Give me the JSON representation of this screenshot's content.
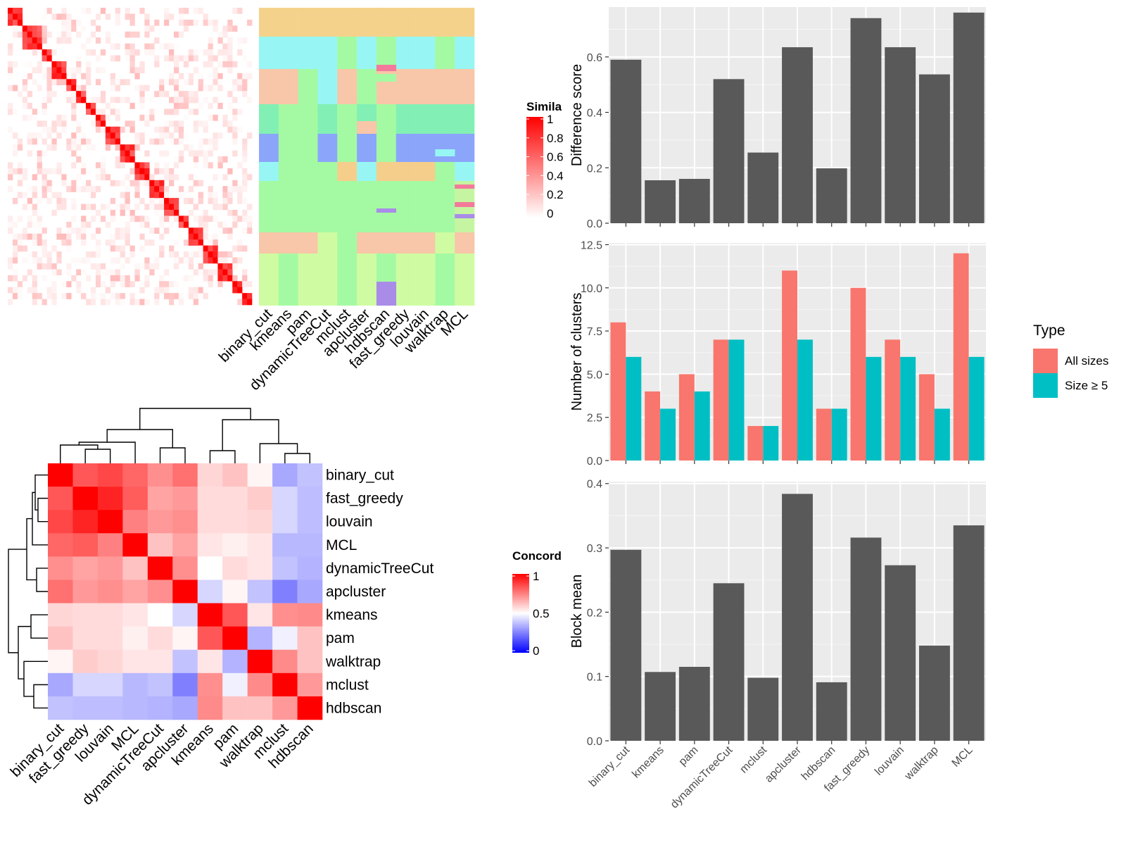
{
  "colors": {
    "panel_bg": "#EBEBEB",
    "bar_dark": "#595959",
    "all_sizes": "#F8766D",
    "size_ge5": "#00BFC4",
    "heat_red": "#FF0000",
    "heat_blue": "#0000FF",
    "white": "#FFFFFF"
  },
  "methods_bar": [
    "binary_cut",
    "kmeans",
    "pam",
    "dynamicTreeCut",
    "mclust",
    "apcluster",
    "hdbscan",
    "fast_greedy",
    "louvain",
    "walktrap",
    "MCL"
  ],
  "similarity_heatmap": {
    "legend_title": "Simila",
    "legend_ticks": [
      "1",
      "0.8",
      "0.6",
      "0.4",
      "0.2",
      "0"
    ],
    "column_labels": [
      "binary_cut",
      "kmeans",
      "pam",
      "dynamicTreeCut",
      "mclust",
      "apcluster",
      "hdbscan",
      "fast_greedy",
      "louvain",
      "walktrap",
      "MCL"
    ],
    "n_terms": 50
  },
  "cluster_palette": [
    "#F5D28C",
    "#97F6F3",
    "#A4FAA2",
    "#F8C6A8",
    "#82F0B4",
    "#8BA5FB",
    "#F5CE8C",
    "#CFFCA2",
    "#A98CE8",
    "#F37A9A",
    "#C6F5A2"
  ],
  "concordance_heatmap": {
    "legend_title": "Concord",
    "legend_ticks": [
      "1",
      "0.5",
      "0"
    ],
    "labels": [
      "binary_cut",
      "fast_greedy",
      "louvain",
      "MCL",
      "dynamicTreeCut",
      "apcluster",
      "kmeans",
      "pam",
      "walktrap",
      "mclust",
      "hdbscan"
    ],
    "values": [
      [
        1.0,
        0.83,
        0.86,
        0.8,
        0.72,
        0.78,
        0.58,
        0.62,
        0.52,
        0.33,
        0.38
      ],
      [
        0.83,
        1.0,
        0.93,
        0.82,
        0.68,
        0.7,
        0.57,
        0.57,
        0.6,
        0.42,
        0.37
      ],
      [
        0.86,
        0.93,
        1.0,
        0.75,
        0.7,
        0.72,
        0.57,
        0.57,
        0.58,
        0.42,
        0.37
      ],
      [
        0.8,
        0.82,
        0.75,
        1.0,
        0.62,
        0.68,
        0.55,
        0.53,
        0.55,
        0.36,
        0.36
      ],
      [
        0.72,
        0.68,
        0.7,
        0.62,
        1.0,
        0.72,
        0.5,
        0.57,
        0.55,
        0.38,
        0.35
      ],
      [
        0.78,
        0.7,
        0.72,
        0.68,
        0.72,
        1.0,
        0.42,
        0.52,
        0.38,
        0.25,
        0.33
      ],
      [
        0.58,
        0.57,
        0.57,
        0.55,
        0.5,
        0.42,
        1.0,
        0.83,
        0.55,
        0.72,
        0.73
      ],
      [
        0.62,
        0.57,
        0.57,
        0.53,
        0.57,
        0.52,
        0.83,
        1.0,
        0.35,
        0.47,
        0.62
      ],
      [
        0.52,
        0.6,
        0.58,
        0.55,
        0.55,
        0.38,
        0.55,
        0.35,
        1.0,
        0.73,
        0.62
      ],
      [
        0.33,
        0.42,
        0.42,
        0.36,
        0.38,
        0.25,
        0.72,
        0.47,
        0.73,
        1.0,
        0.7
      ],
      [
        0.38,
        0.37,
        0.37,
        0.36,
        0.35,
        0.33,
        0.73,
        0.62,
        0.62,
        0.7,
        1.0
      ]
    ]
  },
  "chart_data": [
    {
      "type": "bar",
      "categories": [
        "binary_cut",
        "kmeans",
        "pam",
        "dynamicTreeCut",
        "mclust",
        "apcluster",
        "hdbscan",
        "fast_greedy",
        "louvain",
        "walktrap",
        "MCL"
      ],
      "values": [
        0.59,
        0.155,
        0.16,
        0.52,
        0.255,
        0.635,
        0.198,
        0.74,
        0.635,
        0.537,
        0.76
      ],
      "ylabel": "Difference score",
      "ylim": [
        0,
        0.78
      ],
      "yticks": [
        "0.0",
        "0.2",
        "0.4",
        "0.6"
      ],
      "grid": true
    },
    {
      "type": "bar",
      "categories": [
        "binary_cut",
        "kmeans",
        "pam",
        "dynamicTreeCut",
        "mclust",
        "apcluster",
        "hdbscan",
        "fast_greedy",
        "louvain",
        "walktrap",
        "MCL"
      ],
      "series": [
        {
          "name": "All sizes",
          "values": [
            8,
            4,
            5,
            7,
            2,
            11,
            3,
            10,
            7,
            5,
            12
          ]
        },
        {
          "name": "Size ≥ 5",
          "values": [
            6,
            3,
            4,
            7,
            2,
            7,
            3,
            6,
            6,
            3,
            6
          ]
        }
      ],
      "ylabel": "Number of clusters",
      "ylim": [
        0,
        12.6
      ],
      "yticks": [
        "0.0",
        "2.5",
        "5.0",
        "7.5",
        "10.0",
        "12.5"
      ],
      "legend_title": "Type",
      "legend_position": "right",
      "grid": true
    },
    {
      "type": "bar",
      "categories": [
        "binary_cut",
        "kmeans",
        "pam",
        "dynamicTreeCut",
        "mclust",
        "apcluster",
        "hdbscan",
        "fast_greedy",
        "louvain",
        "walktrap",
        "MCL"
      ],
      "values": [
        0.297,
        0.107,
        0.115,
        0.245,
        0.098,
        0.384,
        0.091,
        0.316,
        0.273,
        0.148,
        0.335
      ],
      "ylabel": "Block mean",
      "ylim": [
        0,
        0.403
      ],
      "yticks": [
        "0.0",
        "0.1",
        "0.2",
        "0.3",
        "0.4"
      ],
      "grid": true
    }
  ]
}
